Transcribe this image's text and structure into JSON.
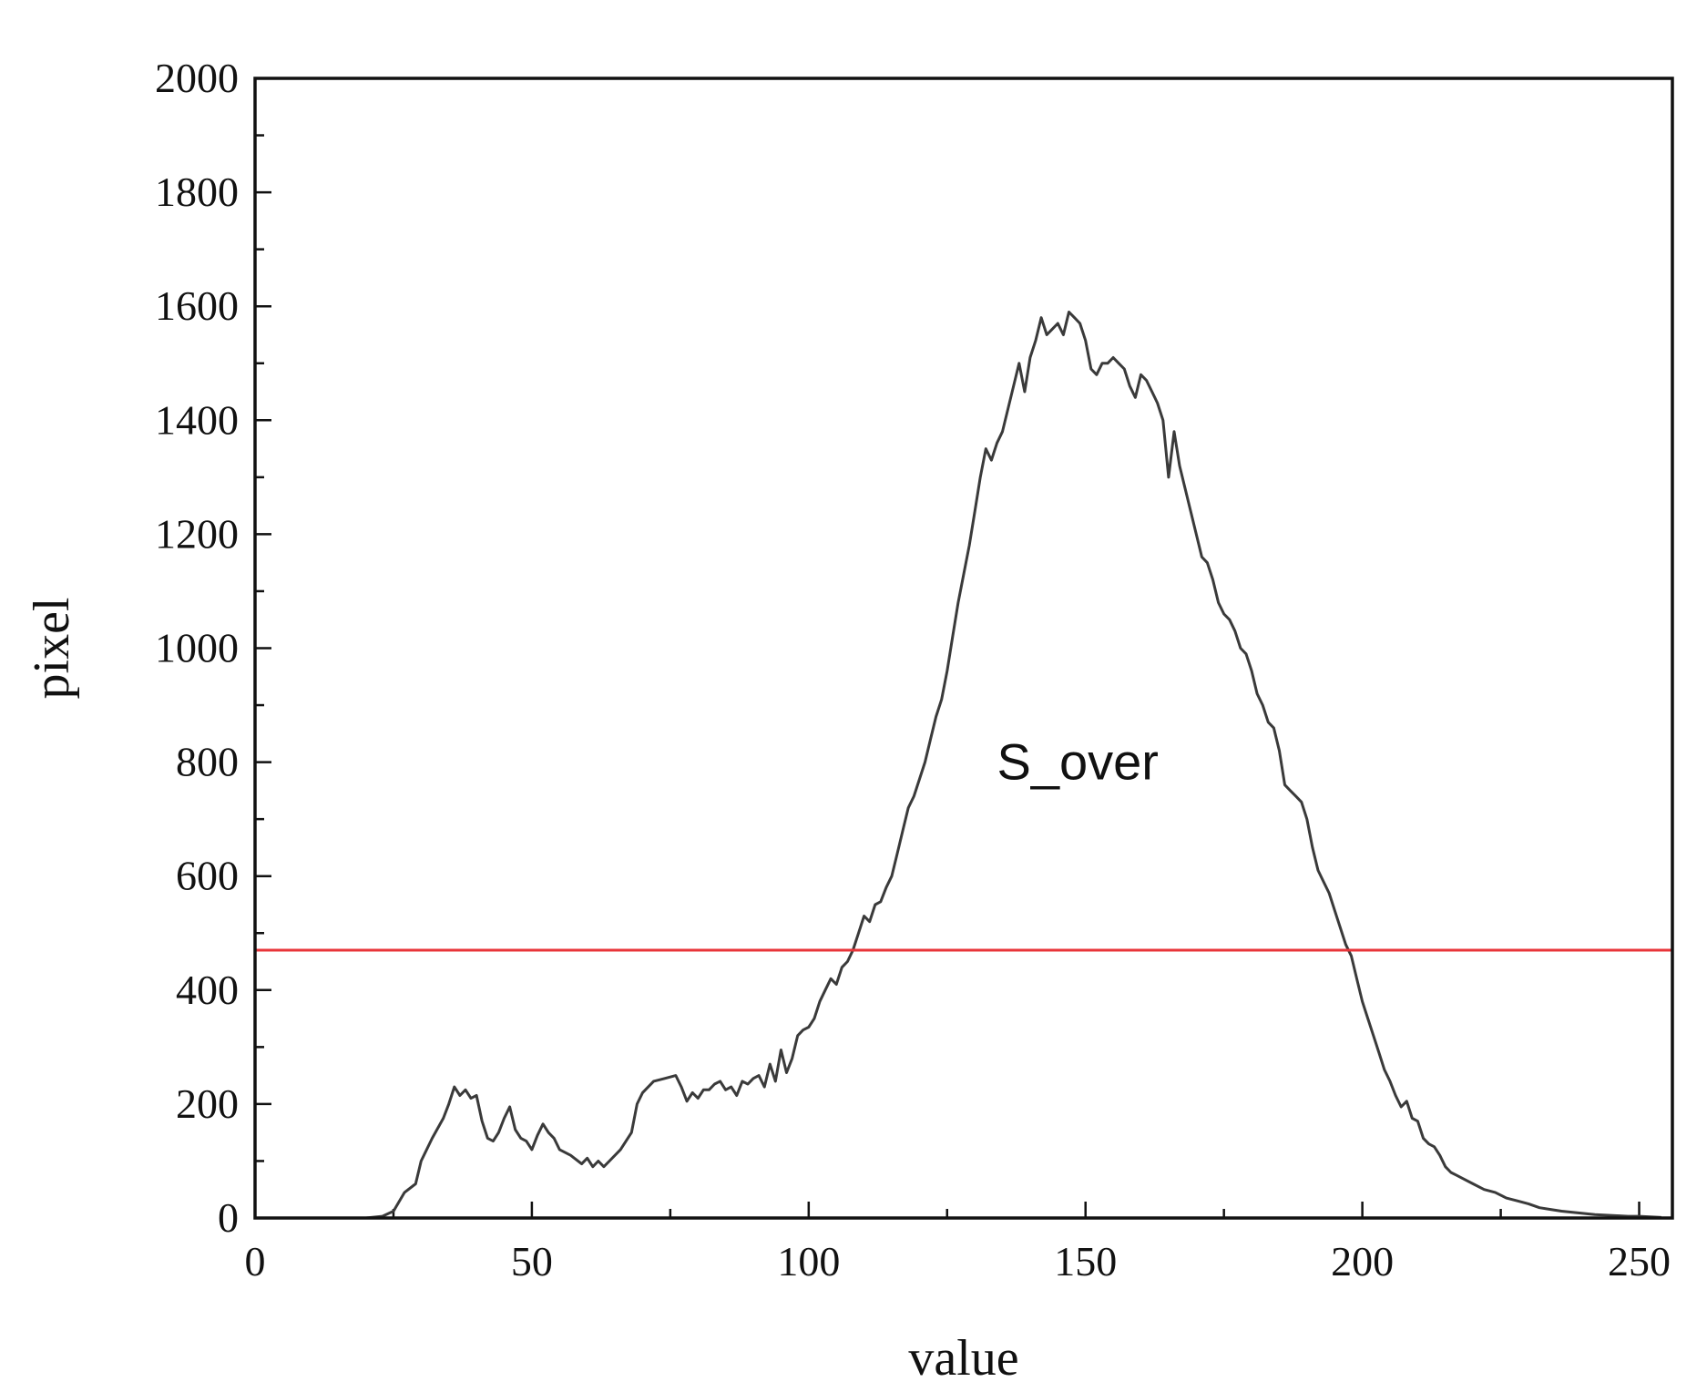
{
  "chart_data": {
    "type": "line",
    "title": "",
    "xlabel": "value",
    "ylabel": "pixel",
    "xlim": [
      0,
      256
    ],
    "ylim": [
      0,
      2000
    ],
    "x_ticks": [
      0,
      50,
      100,
      150,
      200,
      250
    ],
    "y_ticks": [
      0,
      200,
      400,
      600,
      800,
      1000,
      1200,
      1400,
      1600,
      1800,
      2000
    ],
    "grid": false,
    "legend": "none",
    "annotation": "S_over",
    "threshold": {
      "y": 470,
      "color": "#e8353a"
    },
    "series": [
      {
        "color": "#3a3a3a",
        "points": [
          [
            0,
            0
          ],
          [
            10,
            0
          ],
          [
            20,
            0
          ],
          [
            23,
            3
          ],
          [
            25,
            12
          ],
          [
            27,
            45
          ],
          [
            29,
            60
          ],
          [
            30,
            100
          ],
          [
            32,
            140
          ],
          [
            34,
            175
          ],
          [
            35,
            200
          ],
          [
            36,
            230
          ],
          [
            37,
            215
          ],
          [
            38,
            225
          ],
          [
            39,
            210
          ],
          [
            40,
            215
          ],
          [
            41,
            170
          ],
          [
            42,
            140
          ],
          [
            43,
            135
          ],
          [
            44,
            150
          ],
          [
            45,
            175
          ],
          [
            46,
            195
          ],
          [
            47,
            155
          ],
          [
            48,
            140
          ],
          [
            49,
            135
          ],
          [
            50,
            120
          ],
          [
            51,
            145
          ],
          [
            52,
            165
          ],
          [
            53,
            150
          ],
          [
            54,
            140
          ],
          [
            55,
            120
          ],
          [
            57,
            110
          ],
          [
            59,
            95
          ],
          [
            60,
            105
          ],
          [
            61,
            90
          ],
          [
            62,
            100
          ],
          [
            63,
            90
          ],
          [
            64,
            100
          ],
          [
            66,
            120
          ],
          [
            68,
            150
          ],
          [
            69,
            200
          ],
          [
            70,
            220
          ],
          [
            72,
            240
          ],
          [
            74,
            245
          ],
          [
            76,
            250
          ],
          [
            77,
            230
          ],
          [
            78,
            205
          ],
          [
            79,
            220
          ],
          [
            80,
            210
          ],
          [
            81,
            225
          ],
          [
            82,
            225
          ],
          [
            83,
            235
          ],
          [
            84,
            240
          ],
          [
            85,
            225
          ],
          [
            86,
            230
          ],
          [
            87,
            215
          ],
          [
            88,
            240
          ],
          [
            89,
            235
          ],
          [
            90,
            245
          ],
          [
            91,
            250
          ],
          [
            92,
            230
          ],
          [
            93,
            270
          ],
          [
            94,
            240
          ],
          [
            95,
            295
          ],
          [
            96,
            255
          ],
          [
            97,
            280
          ],
          [
            98,
            320
          ],
          [
            99,
            330
          ],
          [
            100,
            335
          ],
          [
            101,
            350
          ],
          [
            102,
            380
          ],
          [
            103,
            400
          ],
          [
            104,
            420
          ],
          [
            105,
            410
          ],
          [
            106,
            440
          ],
          [
            107,
            450
          ],
          [
            108,
            470
          ],
          [
            109,
            500
          ],
          [
            110,
            530
          ],
          [
            111,
            520
          ],
          [
            112,
            550
          ],
          [
            113,
            555
          ],
          [
            114,
            580
          ],
          [
            115,
            600
          ],
          [
            116,
            640
          ],
          [
            117,
            680
          ],
          [
            118,
            720
          ],
          [
            119,
            740
          ],
          [
            120,
            770
          ],
          [
            121,
            800
          ],
          [
            122,
            840
          ],
          [
            123,
            880
          ],
          [
            124,
            910
          ],
          [
            125,
            960
          ],
          [
            126,
            1020
          ],
          [
            127,
            1080
          ],
          [
            128,
            1130
          ],
          [
            129,
            1180
          ],
          [
            130,
            1240
          ],
          [
            131,
            1300
          ],
          [
            132,
            1350
          ],
          [
            133,
            1330
          ],
          [
            134,
            1360
          ],
          [
            135,
            1380
          ],
          [
            136,
            1420
          ],
          [
            137,
            1460
          ],
          [
            138,
            1500
          ],
          [
            139,
            1450
          ],
          [
            140,
            1510
          ],
          [
            141,
            1540
          ],
          [
            142,
            1580
          ],
          [
            143,
            1550
          ],
          [
            144,
            1560
          ],
          [
            145,
            1570
          ],
          [
            146,
            1550
          ],
          [
            147,
            1590
          ],
          [
            148,
            1580
          ],
          [
            149,
            1570
          ],
          [
            150,
            1540
          ],
          [
            151,
            1490
          ],
          [
            152,
            1480
          ],
          [
            153,
            1500
          ],
          [
            154,
            1500
          ],
          [
            155,
            1510
          ],
          [
            156,
            1500
          ],
          [
            157,
            1490
          ],
          [
            158,
            1460
          ],
          [
            159,
            1440
          ],
          [
            160,
            1480
          ],
          [
            161,
            1470
          ],
          [
            162,
            1450
          ],
          [
            163,
            1430
          ],
          [
            164,
            1400
          ],
          [
            165,
            1300
          ],
          [
            166,
            1380
          ],
          [
            167,
            1320
          ],
          [
            168,
            1280
          ],
          [
            169,
            1240
          ],
          [
            170,
            1200
          ],
          [
            171,
            1160
          ],
          [
            172,
            1150
          ],
          [
            173,
            1120
          ],
          [
            174,
            1080
          ],
          [
            175,
            1060
          ],
          [
            176,
            1050
          ],
          [
            177,
            1030
          ],
          [
            178,
            1000
          ],
          [
            179,
            990
          ],
          [
            180,
            960
          ],
          [
            181,
            920
          ],
          [
            182,
            900
          ],
          [
            183,
            870
          ],
          [
            184,
            860
          ],
          [
            185,
            820
          ],
          [
            186,
            760
          ],
          [
            187,
            750
          ],
          [
            188,
            740
          ],
          [
            189,
            730
          ],
          [
            190,
            700
          ],
          [
            191,
            650
          ],
          [
            192,
            610
          ],
          [
            193,
            590
          ],
          [
            194,
            570
          ],
          [
            195,
            540
          ],
          [
            196,
            510
          ],
          [
            197,
            480
          ],
          [
            198,
            460
          ],
          [
            199,
            420
          ],
          [
            200,
            380
          ],
          [
            201,
            350
          ],
          [
            202,
            320
          ],
          [
            203,
            290
          ],
          [
            204,
            260
          ],
          [
            205,
            240
          ],
          [
            206,
            215
          ],
          [
            207,
            195
          ],
          [
            208,
            205
          ],
          [
            209,
            175
          ],
          [
            210,
            170
          ],
          [
            211,
            140
          ],
          [
            212,
            130
          ],
          [
            213,
            125
          ],
          [
            214,
            110
          ],
          [
            215,
            90
          ],
          [
            216,
            80
          ],
          [
            217,
            75
          ],
          [
            218,
            70
          ],
          [
            220,
            60
          ],
          [
            222,
            50
          ],
          [
            224,
            45
          ],
          [
            226,
            35
          ],
          [
            228,
            30
          ],
          [
            230,
            25
          ],
          [
            232,
            18
          ],
          [
            234,
            15
          ],
          [
            236,
            12
          ],
          [
            238,
            10
          ],
          [
            240,
            8
          ],
          [
            242,
            6
          ],
          [
            244,
            5
          ],
          [
            246,
            4
          ],
          [
            248,
            3
          ],
          [
            250,
            3
          ],
          [
            252,
            2
          ],
          [
            254,
            1
          ]
        ]
      }
    ]
  }
}
